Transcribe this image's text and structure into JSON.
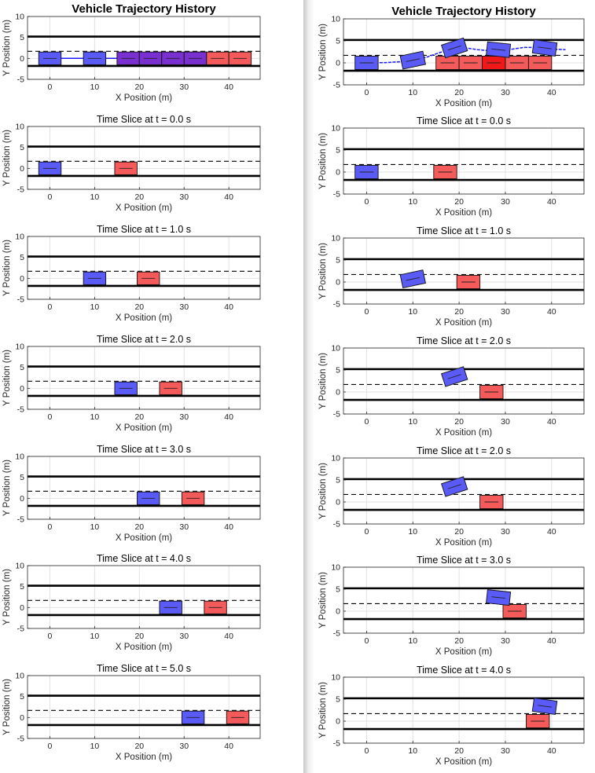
{
  "window": {
    "title": "Vehicle Trajectory History"
  },
  "colors": {
    "ego": "#5a5af7",
    "ego_history": "#7a2fd0",
    "lead": "#f45a5a",
    "lead_dark": "#f01818",
    "path": "#1a1aff",
    "lane_solid": "#000000",
    "lane_dashed": "#000000",
    "grid": "#e2e2e2",
    "axis": "#262626"
  },
  "chart_data": [
    {
      "type": "scatter",
      "panel": "history",
      "title": "Vehicle Trajectory History",
      "xlabel": "X Position (m)",
      "ylabel": "Y Position (m)",
      "xlim": [
        -5,
        47
      ],
      "ylim": [
        -5,
        10
      ],
      "xticks": [
        "0",
        "10",
        "20",
        "30",
        "40"
      ],
      "yticks": [
        "-5",
        "0",
        "5",
        "10"
      ],
      "grid": true,
      "lanes": {
        "solid": [
          5.2,
          -1.8
        ],
        "dashed": [
          1.7
        ]
      },
      "ego_path": {
        "x": [
          0,
          10,
          15.5,
          20,
          25,
          30,
          35,
          42
        ],
        "y": [
          0,
          0,
          0,
          0,
          0,
          0,
          0,
          0
        ]
      },
      "ego_boxes": [
        {
          "x": 0,
          "y": 0,
          "heading": 0,
          "tone": "ego"
        },
        {
          "x": 10,
          "y": 0,
          "heading": 0,
          "tone": "ego"
        },
        {
          "x": 17.5,
          "y": 0,
          "heading": 0,
          "tone": "ego_history"
        },
        {
          "x": 22.5,
          "y": 0,
          "heading": 0,
          "tone": "ego_history"
        },
        {
          "x": 27.5,
          "y": 0,
          "heading": 0,
          "tone": "ego_history"
        },
        {
          "x": 32.5,
          "y": 0,
          "heading": 0,
          "tone": "ego_history"
        }
      ],
      "lead_boxes": [
        {
          "x": 32.5,
          "y": 0,
          "heading": 0,
          "tone": "lead"
        },
        {
          "x": 37.5,
          "y": 0,
          "heading": 0,
          "tone": "lead"
        },
        {
          "x": 42.5,
          "y": 0,
          "heading": 0,
          "tone": "lead"
        }
      ]
    },
    {
      "type": "scatter",
      "panel": "slice",
      "title": "Time Slice at t = 0.0 s",
      "xlabel": "X Position (m)",
      "ylabel": "Y Position (m)",
      "xlim": [
        -5,
        47
      ],
      "ylim": [
        -5,
        10
      ],
      "xticks": [
        "0",
        "10",
        "20",
        "30",
        "40"
      ],
      "yticks": [
        "-5",
        "0",
        "5",
        "10"
      ],
      "grid": true,
      "lanes": {
        "solid": [
          5.2,
          -1.8
        ],
        "dashed": [
          1.7
        ]
      },
      "ego_boxes": [
        {
          "x": 0,
          "y": 0,
          "heading": 0,
          "tone": "ego"
        }
      ],
      "lead_boxes": [
        {
          "x": 17,
          "y": 0,
          "heading": 0,
          "tone": "lead"
        }
      ]
    },
    {
      "type": "scatter",
      "panel": "slice",
      "title": "Time Slice at t = 1.0 s",
      "xlabel": "X Position (m)",
      "ylabel": "Y Position (m)",
      "xlim": [
        -5,
        47
      ],
      "ylim": [
        -5,
        10
      ],
      "xticks": [
        "0",
        "10",
        "20",
        "30",
        "40"
      ],
      "yticks": [
        "-5",
        "0",
        "5",
        "10"
      ],
      "grid": true,
      "lanes": {
        "solid": [
          5.2,
          -1.8
        ],
        "dashed": [
          1.7
        ]
      },
      "ego_boxes": [
        {
          "x": 10,
          "y": 0,
          "heading": 0,
          "tone": "ego"
        }
      ],
      "lead_boxes": [
        {
          "x": 22,
          "y": 0,
          "heading": 0,
          "tone": "lead"
        }
      ]
    },
    {
      "type": "scatter",
      "panel": "slice",
      "title": "Time Slice at t = 2.0 s",
      "xlabel": "X Position (m)",
      "ylabel": "Y Position (m)",
      "xlim": [
        -5,
        47
      ],
      "ylim": [
        -5,
        10
      ],
      "xticks": [
        "0",
        "10",
        "20",
        "30",
        "40"
      ],
      "yticks": [
        "-5",
        "0",
        "5",
        "10"
      ],
      "grid": true,
      "lanes": {
        "solid": [
          5.2,
          -1.8
        ],
        "dashed": [
          1.7
        ]
      },
      "ego_boxes": [
        {
          "x": 17,
          "y": 0,
          "heading": 0,
          "tone": "ego"
        }
      ],
      "lead_boxes": [
        {
          "x": 27,
          "y": 0,
          "heading": 0,
          "tone": "lead"
        }
      ]
    },
    {
      "type": "scatter",
      "panel": "slice",
      "title": "Time Slice at t = 3.0 s",
      "xlabel": "X Position (m)",
      "ylabel": "Y Position (m)",
      "xlim": [
        -5,
        47
      ],
      "ylim": [
        -5,
        10
      ],
      "xticks": [
        "0",
        "10",
        "20",
        "30",
        "40"
      ],
      "yticks": [
        "-5",
        "0",
        "5",
        "10"
      ],
      "grid": true,
      "lanes": {
        "solid": [
          5.2,
          -1.8
        ],
        "dashed": [
          1.7
        ]
      },
      "ego_boxes": [
        {
          "x": 22,
          "y": 0,
          "heading": 0,
          "tone": "ego"
        }
      ],
      "lead_boxes": [
        {
          "x": 32,
          "y": 0,
          "heading": 0,
          "tone": "lead"
        }
      ]
    },
    {
      "type": "scatter",
      "panel": "slice",
      "title": "Time Slice at t = 4.0 s",
      "xlabel": "X Position (m)",
      "ylabel": "Y Position (m)",
      "xlim": [
        -5,
        47
      ],
      "ylim": [
        -5,
        10
      ],
      "xticks": [
        "0",
        "10",
        "20",
        "30",
        "40"
      ],
      "yticks": [
        "-5",
        "0",
        "5",
        "10"
      ],
      "grid": true,
      "lanes": {
        "solid": [
          5.2,
          -1.8
        ],
        "dashed": [
          1.7
        ]
      },
      "ego_boxes": [
        {
          "x": 27,
          "y": 0,
          "heading": 0,
          "tone": "ego"
        }
      ],
      "lead_boxes": [
        {
          "x": 37,
          "y": 0,
          "heading": 0,
          "tone": "lead"
        }
      ]
    },
    {
      "type": "scatter",
      "panel": "slice",
      "title": "Time Slice at t = 5.0 s",
      "xlabel": "X Position (m)",
      "ylabel": "Y Position (m)",
      "xlim": [
        -5,
        47
      ],
      "ylim": [
        -5,
        10
      ],
      "xticks": [
        "0",
        "10",
        "20",
        "30",
        "40"
      ],
      "yticks": [
        "-5",
        "0",
        "5",
        "10"
      ],
      "grid": true,
      "lanes": {
        "solid": [
          5.2,
          -1.8
        ],
        "dashed": [
          1.7
        ]
      },
      "ego_boxes": [
        {
          "x": 32,
          "y": 0,
          "heading": 0,
          "tone": "ego"
        }
      ],
      "lead_boxes": [
        {
          "x": 42,
          "y": 0,
          "heading": 0,
          "tone": "lead"
        }
      ]
    },
    {
      "type": "scatter",
      "panel": "history",
      "title": "Vehicle Trajectory History",
      "xlabel": "X Position (m)",
      "ylabel": "Y Position (m)",
      "xlim": [
        -5,
        47
      ],
      "ylim": [
        -5,
        10
      ],
      "xticks": [
        "0",
        "10",
        "20",
        "30",
        "40"
      ],
      "yticks": [
        "-5",
        "0",
        "5",
        "10"
      ],
      "grid": true,
      "lanes": {
        "solid": [
          5.2,
          -1.8
        ],
        "dashed": [
          1.7
        ]
      },
      "ego_path": {
        "x": [
          0,
          4,
          8,
          10,
          13,
          16,
          18,
          20,
          22,
          24,
          26,
          28,
          30,
          32,
          34,
          36,
          38,
          40,
          43
        ],
        "y": [
          0,
          0.05,
          0.3,
          0.6,
          1.3,
          2.4,
          3.1,
          3.5,
          3.3,
          3.0,
          2.8,
          2.75,
          2.9,
          3.2,
          3.5,
          3.5,
          3.3,
          3.1,
          3.0
        ]
      },
      "ego_boxes": [
        {
          "x": 0,
          "y": 0,
          "heading": 0,
          "tone": "ego"
        },
        {
          "x": 10,
          "y": 0.6,
          "heading": 12,
          "tone": "ego"
        },
        {
          "x": 19,
          "y": 3.4,
          "heading": 18,
          "tone": "ego"
        },
        {
          "x": 28.5,
          "y": 3.0,
          "heading": -6,
          "tone": "ego"
        },
        {
          "x": 38.5,
          "y": 3.4,
          "heading": -8,
          "tone": "ego"
        }
      ],
      "lead_boxes": [
        {
          "x": 17.5,
          "y": 0,
          "heading": 0,
          "tone": "lead"
        },
        {
          "x": 22.5,
          "y": 0,
          "heading": 0,
          "tone": "lead"
        },
        {
          "x": 27.5,
          "y": 0,
          "heading": 0,
          "tone": "lead_dark"
        },
        {
          "x": 32.5,
          "y": 0,
          "heading": 0,
          "tone": "lead"
        },
        {
          "x": 37.5,
          "y": 0,
          "heading": 0,
          "tone": "lead"
        }
      ]
    },
    {
      "type": "scatter",
      "panel": "slice",
      "title": "Time Slice at t = 0.0 s",
      "xlabel": "X Position (m)",
      "ylabel": "Y Position (m)",
      "xlim": [
        -5,
        47
      ],
      "ylim": [
        -5,
        10
      ],
      "xticks": [
        "0",
        "10",
        "20",
        "30",
        "40"
      ],
      "yticks": [
        "-5",
        "0",
        "5",
        "10"
      ],
      "grid": true,
      "lanes": {
        "solid": [
          5.2,
          -1.8
        ],
        "dashed": [
          1.7
        ]
      },
      "ego_boxes": [
        {
          "x": 0,
          "y": 0,
          "heading": 0,
          "tone": "ego"
        }
      ],
      "lead_boxes": [
        {
          "x": 17,
          "y": 0,
          "heading": 0,
          "tone": "lead"
        }
      ]
    },
    {
      "type": "scatter",
      "panel": "slice",
      "title": "Time Slice at t = 1.0 s",
      "xlabel": "X Position (m)",
      "ylabel": "Y Position (m)",
      "xlim": [
        -5,
        47
      ],
      "ylim": [
        -5,
        10
      ],
      "xticks": [
        "0",
        "10",
        "20",
        "30",
        "40"
      ],
      "yticks": [
        "-5",
        "0",
        "5",
        "10"
      ],
      "grid": true,
      "lanes": {
        "solid": [
          5.2,
          -1.8
        ],
        "dashed": [
          1.7
        ]
      },
      "ego_boxes": [
        {
          "x": 10,
          "y": 0.7,
          "heading": 12,
          "tone": "ego"
        }
      ],
      "lead_boxes": [
        {
          "x": 22,
          "y": 0,
          "heading": 0,
          "tone": "lead"
        }
      ]
    },
    {
      "type": "scatter",
      "panel": "slice",
      "title": "Time Slice at t = 2.0 s",
      "xlabel": "X Position (m)",
      "ylabel": "Y Position (m)",
      "xlim": [
        -5,
        47
      ],
      "ylim": [
        -5,
        10
      ],
      "xticks": [
        "0",
        "10",
        "20",
        "30",
        "40"
      ],
      "yticks": [
        "-5",
        "0",
        "5",
        "10"
      ],
      "grid": true,
      "lanes": {
        "solid": [
          5.2,
          -1.8
        ],
        "dashed": [
          1.7
        ]
      },
      "ego_boxes": [
        {
          "x": 19,
          "y": 3.5,
          "heading": 18,
          "tone": "ego"
        }
      ],
      "lead_boxes": [
        {
          "x": 27,
          "y": 0,
          "heading": 0,
          "tone": "lead"
        }
      ]
    },
    {
      "type": "scatter",
      "panel": "slice",
      "title": "Time Slice at t = 2.0 s",
      "xlabel": "X Position (m)",
      "ylabel": "Y Position (m)",
      "xlim": [
        -5,
        47
      ],
      "ylim": [
        -5,
        10
      ],
      "xticks": [
        "0",
        "10",
        "20",
        "30",
        "40"
      ],
      "yticks": [
        "-5",
        "0",
        "5",
        "10"
      ],
      "grid": true,
      "lanes": {
        "solid": [
          5.2,
          -1.8
        ],
        "dashed": [
          1.7
        ]
      },
      "ego_boxes": [
        {
          "x": 19,
          "y": 3.5,
          "heading": 18,
          "tone": "ego"
        }
      ],
      "lead_boxes": [
        {
          "x": 27,
          "y": 0,
          "heading": 0,
          "tone": "lead"
        }
      ]
    },
    {
      "type": "scatter",
      "panel": "slice",
      "title": "Time Slice at t = 3.0 s",
      "xlabel": "X Position (m)",
      "ylabel": "Y Position (m)",
      "xlim": [
        -5,
        47
      ],
      "ylim": [
        -5,
        10
      ],
      "xticks": [
        "0",
        "10",
        "20",
        "30",
        "40"
      ],
      "yticks": [
        "-5",
        "0",
        "5",
        "10"
      ],
      "grid": true,
      "lanes": {
        "solid": [
          5.2,
          -1.8
        ],
        "dashed": [
          1.7
        ]
      },
      "ego_boxes": [
        {
          "x": 28.5,
          "y": 3.1,
          "heading": -6,
          "tone": "ego"
        }
      ],
      "lead_boxes": [
        {
          "x": 32,
          "y": 0,
          "heading": 0,
          "tone": "lead"
        }
      ]
    },
    {
      "type": "scatter",
      "panel": "slice",
      "title": "Time Slice at t = 4.0 s",
      "xlabel": "X Position (m)",
      "ylabel": "Y Position (m)",
      "xlim": [
        -5,
        47
      ],
      "ylim": [
        -5,
        10
      ],
      "xticks": [
        "0",
        "10",
        "20",
        "30",
        "40"
      ],
      "yticks": [
        "-5",
        "0",
        "5",
        "10"
      ],
      "grid": true,
      "lanes": {
        "solid": [
          5.2,
          -1.8
        ],
        "dashed": [
          1.7
        ]
      },
      "ego_boxes": [
        {
          "x": 38.5,
          "y": 3.4,
          "heading": -8,
          "tone": "ego"
        }
      ],
      "lead_boxes": [
        {
          "x": 37,
          "y": 0,
          "heading": 0,
          "tone": "lead"
        }
      ]
    }
  ]
}
